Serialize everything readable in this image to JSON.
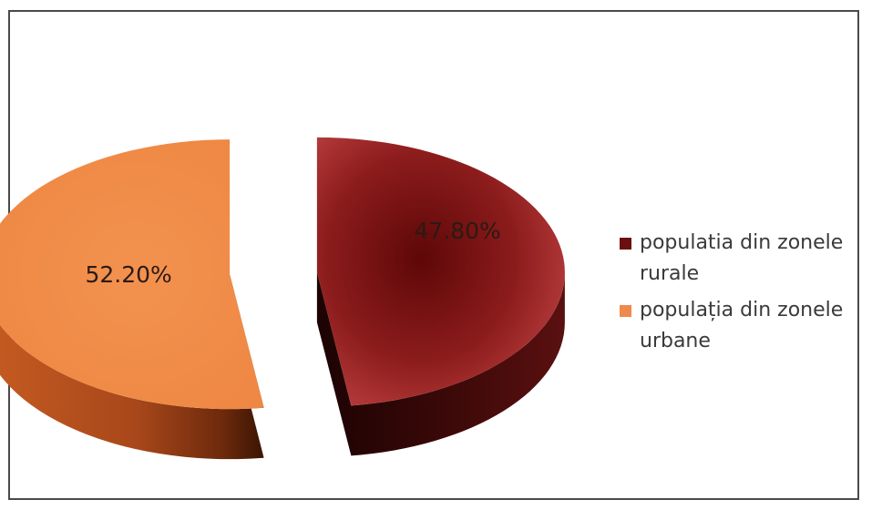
{
  "chart_data": {
    "type": "pie",
    "slices": [
      {
        "label": "populatia din zonele rurale",
        "value": 47.8,
        "value_label": "47.80%",
        "color": "#8c1c1c"
      },
      {
        "label": "populația din zonele urbane",
        "value": 52.2,
        "value_label": "52.20%",
        "color": "#ef8a4b"
      }
    ],
    "style": "3d-exploded",
    "legend_position": "right"
  },
  "legend": {
    "items": [
      {
        "text": "populatia din zonele rurale",
        "color": "#6b1010"
      },
      {
        "text": "populația din zonele urbane",
        "color": "#ef8a4b"
      }
    ]
  }
}
